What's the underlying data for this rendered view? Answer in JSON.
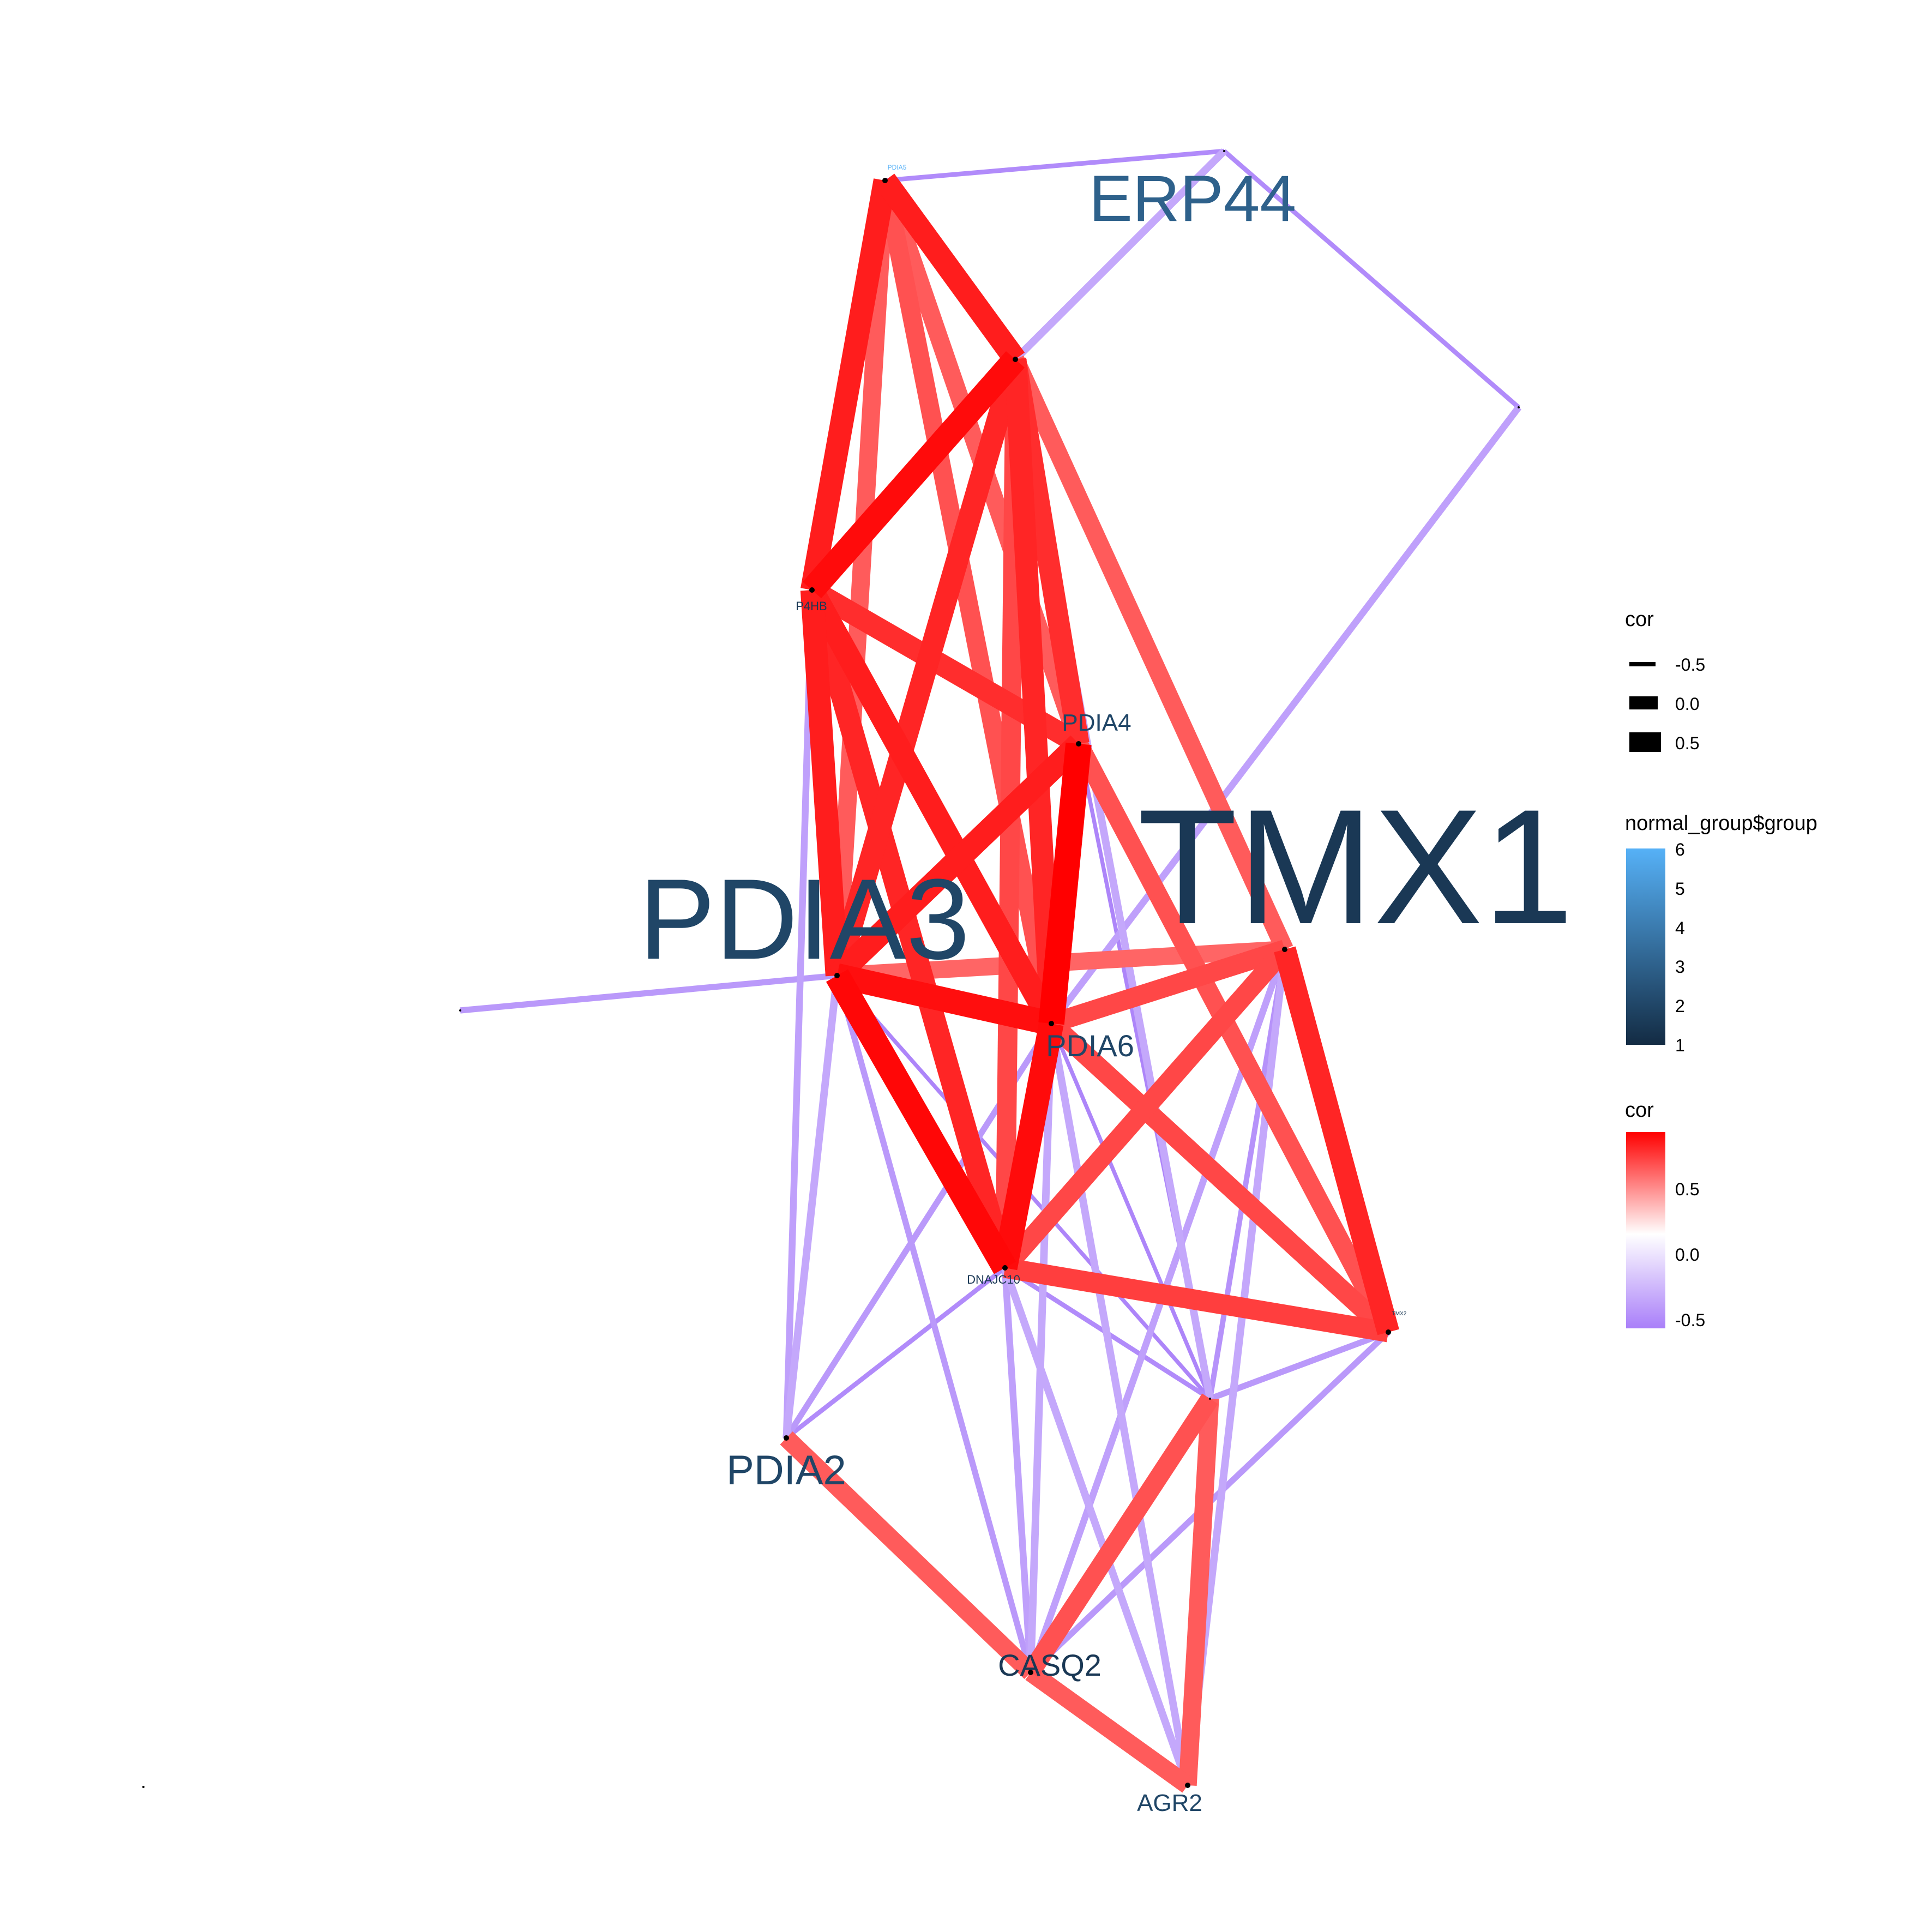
{
  "network": {
    "nodes": [
      {
        "id": "PDIA5",
        "label": "PDIA5",
        "group": 6.0
      },
      {
        "id": "ERP44",
        "label": "ERP44",
        "group": 3.0
      },
      {
        "id": "N_TOP",
        "label": "",
        "group": 1
      },
      {
        "id": "N_RIGHT",
        "label": "",
        "group": 1
      },
      {
        "id": "P4HB",
        "label": "P4HB",
        "group": 1.5
      },
      {
        "id": "PDIA4",
        "label": "PDIA4",
        "group": 2
      },
      {
        "id": "TMX1",
        "label": "TMX1",
        "group": 1.5
      },
      {
        "id": "PDIA3",
        "label": "PDIA3",
        "group": 2
      },
      {
        "id": "N_LEFT",
        "label": "",
        "group": 1
      },
      {
        "id": "PDIA6",
        "label": "PDIA6",
        "group": 2
      },
      {
        "id": "DNAJC10",
        "label": "DNAJC10",
        "group": 1.5
      },
      {
        "id": "TMX2",
        "label": "TMX2",
        "group": 1.5
      },
      {
        "id": "N_MID",
        "label": "",
        "group": 1
      },
      {
        "id": "PDIA2",
        "label": "PDIA2",
        "group": 2
      },
      {
        "id": "CASQ2",
        "label": "CASQ2",
        "group": 1.5
      },
      {
        "id": "AGR2",
        "label": "AGR2",
        "group": 2
      },
      {
        "id": "N_FAR",
        "label": "",
        "group": 1
      }
    ],
    "edges": [
      {
        "from": "PDIA5",
        "to": "N_TOP",
        "cor": -0.5
      },
      {
        "from": "N_TOP",
        "to": "N_RIGHT",
        "cor": -0.5
      },
      {
        "from": "N_RIGHT",
        "to": "PDIA6",
        "cor": -0.35
      },
      {
        "from": "N_TOP",
        "to": "ERP44",
        "cor": -0.3
      },
      {
        "from": "ERP44",
        "to": "N_MID",
        "cor": -0.3
      },
      {
        "from": "ERP44",
        "to": "TMX1",
        "cor": 0.45
      },
      {
        "from": "PDIA5",
        "to": "P4HB",
        "cor": 0.8
      },
      {
        "from": "PDIA5",
        "to": "ERP44",
        "cor": 0.8
      },
      {
        "from": "PDIA5",
        "to": "PDIA6",
        "cor": 0.5
      },
      {
        "from": "PDIA5",
        "to": "PDIA4",
        "cor": 0.45
      },
      {
        "from": "PDIA5",
        "to": "PDIA3",
        "cor": 0.45
      },
      {
        "from": "P4HB",
        "to": "ERP44",
        "cor": 0.92
      },
      {
        "from": "P4HB",
        "to": "PDIA4",
        "cor": 0.7
      },
      {
        "from": "P4HB",
        "to": "PDIA6",
        "cor": 0.8
      },
      {
        "from": "P4HB",
        "to": "PDIA3",
        "cor": 0.8
      },
      {
        "from": "P4HB",
        "to": "DNAJC10",
        "cor": 0.75
      },
      {
        "from": "P4HB",
        "to": "PDIA2",
        "cor": -0.35
      },
      {
        "from": "ERP44",
        "to": "PDIA3",
        "cor": 0.75
      },
      {
        "from": "ERP44",
        "to": "PDIA6",
        "cor": 0.75
      },
      {
        "from": "ERP44",
        "to": "PDIA4",
        "cor": 0.7
      },
      {
        "from": "ERP44",
        "to": "DNAJC10",
        "cor": 0.55
      },
      {
        "from": "PDIA4",
        "to": "PDIA6",
        "cor": 1.0
      },
      {
        "from": "PDIA4",
        "to": "PDIA3",
        "cor": 0.8
      },
      {
        "from": "PDIA4",
        "to": "TMX2",
        "cor": 0.5
      },
      {
        "from": "PDIA4",
        "to": "N_MID",
        "cor": -0.55
      },
      {
        "from": "PDIA3",
        "to": "PDIA6",
        "cor": 0.9
      },
      {
        "from": "PDIA3",
        "to": "DNAJC10",
        "cor": 0.95
      },
      {
        "from": "PDIA3",
        "to": "TMX1",
        "cor": 0.4
      },
      {
        "from": "PDIA3",
        "to": "N_LEFT",
        "cor": -0.4
      },
      {
        "from": "PDIA3",
        "to": "PDIA2",
        "cor": -0.3
      },
      {
        "from": "PDIA3",
        "to": "CASQ2",
        "cor": -0.4
      },
      {
        "from": "PDIA3",
        "to": "N_MID",
        "cor": -0.55
      },
      {
        "from": "PDIA6",
        "to": "DNAJC10",
        "cor": 0.92
      },
      {
        "from": "PDIA6",
        "to": "TMX1",
        "cor": 0.55
      },
      {
        "from": "PDIA6",
        "to": "TMX2",
        "cor": 0.55
      },
      {
        "from": "PDIA6",
        "to": "PDIA2",
        "cor": -0.4
      },
      {
        "from": "PDIA6",
        "to": "CASQ2",
        "cor": -0.3
      },
      {
        "from": "PDIA6",
        "to": "AGR2",
        "cor": -0.3
      },
      {
        "from": "PDIA6",
        "to": "N_MID",
        "cor": -0.55
      },
      {
        "from": "TMX1",
        "to": "TMX2",
        "cor": 0.75
      },
      {
        "from": "TMX1",
        "to": "DNAJC10",
        "cor": 0.55
      },
      {
        "from": "TMX1",
        "to": "N_MID",
        "cor": -0.45
      },
      {
        "from": "TMX1",
        "to": "CASQ2",
        "cor": -0.35
      },
      {
        "from": "TMX1",
        "to": "AGR2",
        "cor": -0.3
      },
      {
        "from": "DNAJC10",
        "to": "TMX2",
        "cor": 0.6
      },
      {
        "from": "DNAJC10",
        "to": "N_MID",
        "cor": -0.5
      },
      {
        "from": "DNAJC10",
        "to": "PDIA2",
        "cor": -0.5
      },
      {
        "from": "DNAJC10",
        "to": "CASQ2",
        "cor": -0.35
      },
      {
        "from": "DNAJC10",
        "to": "AGR2",
        "cor": -0.3
      },
      {
        "from": "TMX2",
        "to": "N_MID",
        "cor": -0.4
      },
      {
        "from": "TMX2",
        "to": "CASQ2",
        "cor": -0.4
      },
      {
        "from": "N_MID",
        "to": "CASQ2",
        "cor": 0.5
      },
      {
        "from": "N_MID",
        "to": "AGR2",
        "cor": 0.45
      },
      {
        "from": "PDIA2",
        "to": "CASQ2",
        "cor": 0.45
      },
      {
        "from": "CASQ2",
        "to": "AGR2",
        "cor": 0.45
      }
    ]
  },
  "legend": {
    "width_title": "cor",
    "width_items": [
      "-0.5",
      "0.0",
      "0.5"
    ],
    "group_title": "normal_group$group",
    "group_ticks": [
      "6",
      "5",
      "4",
      "3",
      "2",
      "1"
    ],
    "group_colors": {
      "low": "#132b43",
      "high": "#56b1f7"
    },
    "color_title": "cor",
    "color_ticks": [
      "0.5",
      "0.0",
      "-0.5"
    ],
    "color_scale": {
      "low": "#a97ff9",
      "mid": "#ffffff",
      "high": "#ff0000"
    }
  }
}
